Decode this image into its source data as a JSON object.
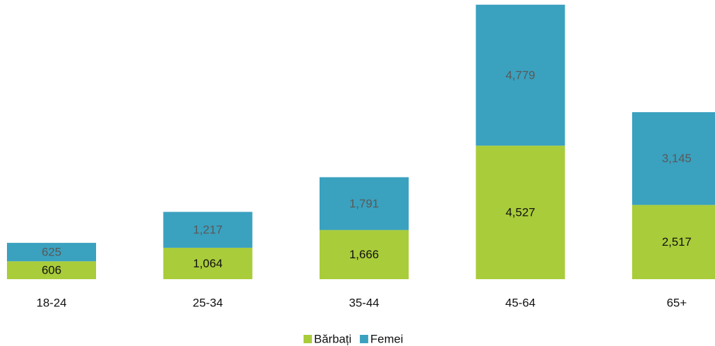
{
  "chart_data": {
    "type": "stacked_bar",
    "categories": [
      "18-24",
      "25-34",
      "35-44",
      "45-64",
      "65+"
    ],
    "series": [
      {
        "name": "Bărbați",
        "color": "#a9cc3a",
        "values": [
          606,
          1064,
          1666,
          4527,
          2517
        ],
        "value_labels": [
          "606",
          "1,064",
          "1,666",
          "4,527",
          "2,517"
        ]
      },
      {
        "name": "Femei",
        "color": "#3aa1bf",
        "values": [
          625,
          1217,
          1791,
          4779,
          3145
        ],
        "value_labels": [
          "625",
          "1,217",
          "1,791",
          "4,779",
          "3,145"
        ]
      }
    ],
    "ylim": [
      0,
      9300
    ],
    "grid": false,
    "legend": "bottom"
  }
}
